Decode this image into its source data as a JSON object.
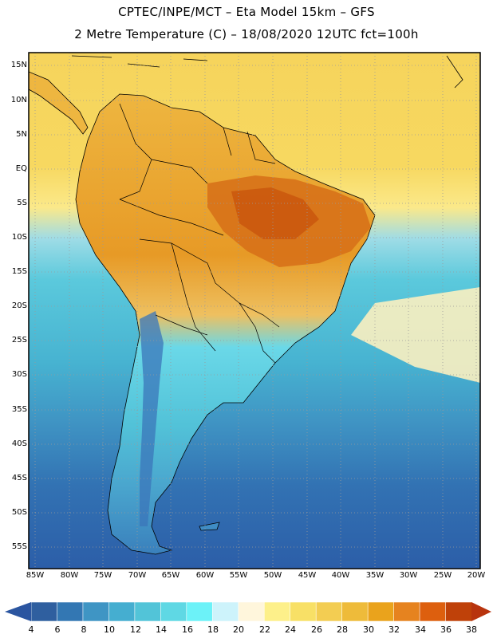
{
  "title": {
    "line1": "CPTEC/INPE/MCT –  Eta Model 15km – GFS",
    "line2": "2 Metre Temperature (C) – 18/08/2020 12UTC fct=100h"
  },
  "map": {
    "lat_labels": [
      "15N",
      "10N",
      "5N",
      "EQ",
      "5S",
      "10S",
      "15S",
      "20S",
      "25S",
      "30S",
      "35S",
      "40S",
      "45S",
      "50S",
      "55S"
    ],
    "lon_labels": [
      "85W",
      "80W",
      "75W",
      "70W",
      "65W",
      "60W",
      "55W",
      "50W",
      "45W",
      "40W",
      "35W",
      "30W",
      "25W",
      "20W"
    ],
    "lat_range": [
      18,
      -58
    ],
    "lon_range": [
      -86,
      -20
    ]
  },
  "colorbar": {
    "ticks": [
      "4",
      "6",
      "8",
      "10",
      "12",
      "14",
      "16",
      "18",
      "20",
      "22",
      "24",
      "26",
      "28",
      "30",
      "32",
      "34",
      "36",
      "38"
    ],
    "colors": [
      "#2f5f9f",
      "#3377b3",
      "#3f95c4",
      "#45aed0",
      "#52c4d8",
      "#5fd8e4",
      "#6cf2f8",
      "#cdf3fb",
      "#fff6dc",
      "#fdf08a",
      "#f8e066",
      "#f3cd52",
      "#eebb3a",
      "#eaa31c",
      "#e6831f",
      "#dd5f0e",
      "#bf4109"
    ],
    "low_color": "#2b55a0",
    "high_color": "#b8340e"
  },
  "colors": {
    "ocean_south": "#2f5fa8",
    "ocean_mid": "#4db8d4",
    "ocean_tropic": "#f7d660",
    "land_warm": "#e59a26",
    "land_hot": "#d26a14",
    "land_cool": "#5fd6e4",
    "andes_cold": "#3a73b8",
    "border": "#000000"
  }
}
